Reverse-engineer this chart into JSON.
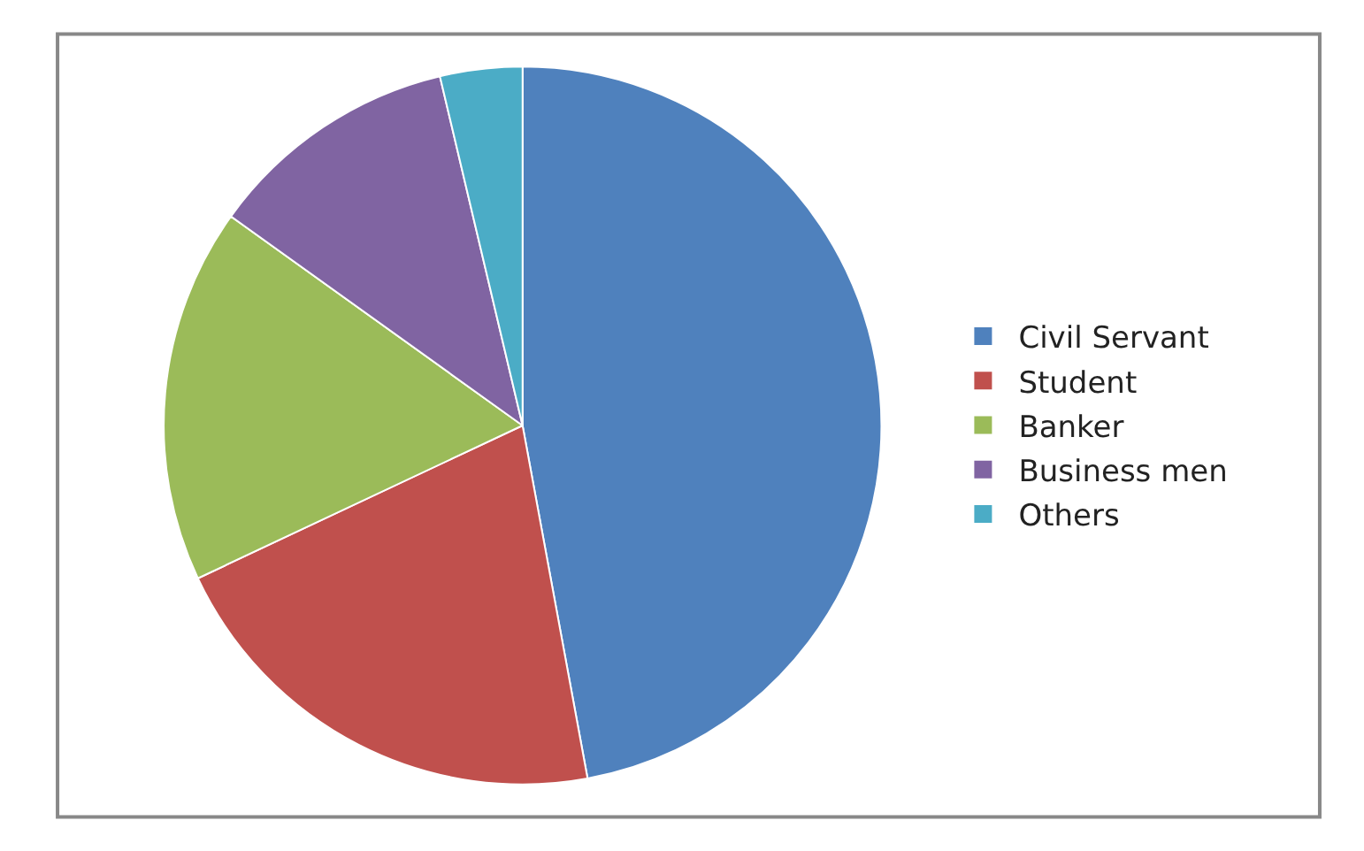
{
  "chart_data": {
    "type": "pie",
    "categories": [
      "Civil Servant",
      "Student",
      "Banker",
      "Business men",
      "Others"
    ],
    "values": [
      47.1,
      20.9,
      16.9,
      11.4,
      3.7
    ],
    "colors": [
      "#4f81bd",
      "#c0504d",
      "#9bbb59",
      "#8064a2",
      "#4bacc6"
    ],
    "legend": "right"
  }
}
